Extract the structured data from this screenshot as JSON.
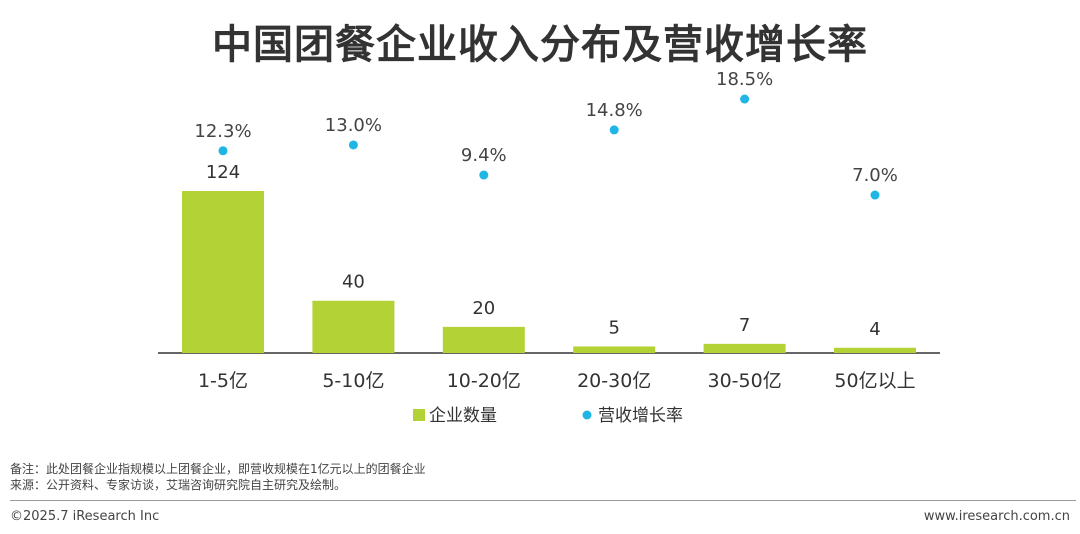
{
  "title": "中国团餐企业收入分布及营收增长率",
  "chart_data": {
    "type": "bar",
    "categories": [
      "1-5亿",
      "5-10亿",
      "10-20亿",
      "20-30亿",
      "30-50亿",
      "50亿以上"
    ],
    "series": [
      {
        "name": "企业数量",
        "type": "bar",
        "values": [
          124,
          40,
          20,
          5,
          7,
          4
        ],
        "color": "#b2d235"
      },
      {
        "name": "营收增长率",
        "type": "scatter",
        "values": [
          12.3,
          13.0,
          9.4,
          14.8,
          18.5,
          7.0
        ],
        "labels": [
          "12.3%",
          "13.0%",
          "9.4%",
          "14.8%",
          "18.5%",
          "7.0%"
        ],
        "color": "#1fb6e6"
      }
    ],
    "legend_position": "bottom-center",
    "grid": false
  },
  "notes": {
    "remark": "备注：此处团餐企业指规模以上团餐企业，即营收规模在1亿元以上的团餐企业",
    "source": "来源：公开资料、专家访谈，艾瑞咨询研究院自主研究及绘制。"
  },
  "footer": {
    "copyright": "©2025.7 iResearch Inc",
    "website": "www.iresearch.com.cn"
  }
}
